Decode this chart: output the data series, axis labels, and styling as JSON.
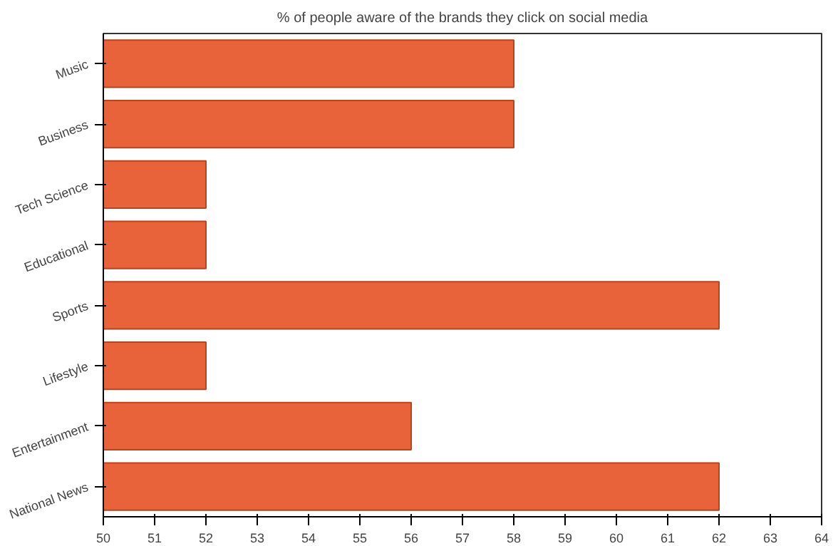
{
  "chart_data": {
    "type": "bar",
    "orientation": "horizontal",
    "title": "% of people aware of the brands they click on social media",
    "categories": [
      "Music",
      "Business",
      "Tech Science",
      "Educational",
      "Sports",
      "Lifestyle",
      "Entertainment",
      "National News"
    ],
    "values": [
      58,
      58,
      52,
      52,
      62,
      52,
      56,
      62
    ],
    "color": "#e8623a",
    "xlim": [
      50,
      64
    ],
    "xticks": [
      50,
      51,
      52,
      53,
      54,
      55,
      56,
      57,
      58,
      59,
      60,
      61,
      62,
      63,
      64
    ],
    "grid": false
  }
}
